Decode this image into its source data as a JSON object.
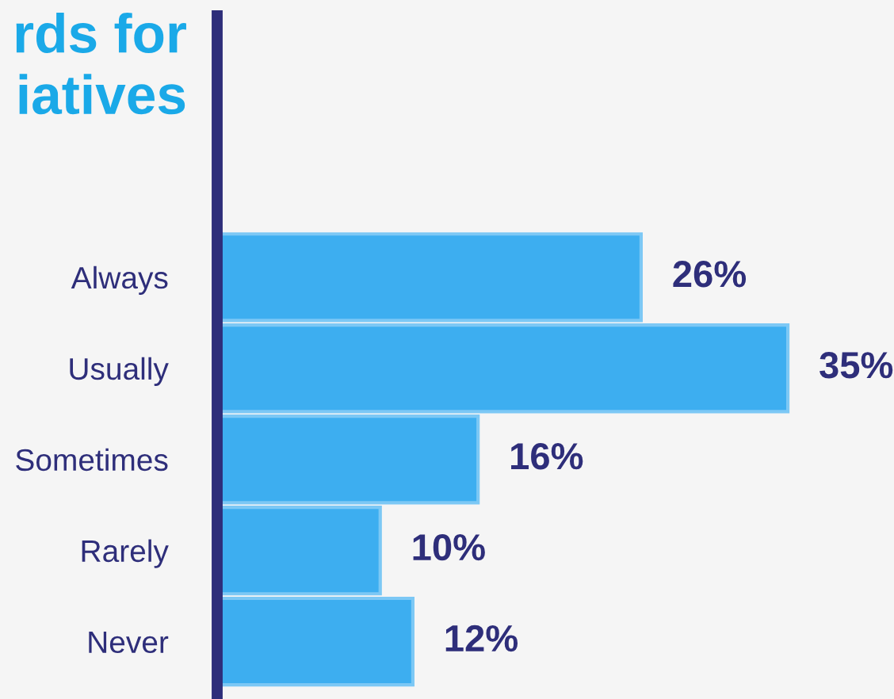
{
  "chart_data": {
    "type": "bar",
    "orientation": "horizontal",
    "title": "rds for\niatives",
    "categories": [
      "Always",
      "Usually",
      "Sometimes",
      "Rarely",
      "Never"
    ],
    "values": [
      26,
      35,
      16,
      10,
      12
    ],
    "value_labels": [
      "26%",
      "35%",
      "16%",
      "10%",
      "12%"
    ],
    "color": "#3daef0"
  }
}
